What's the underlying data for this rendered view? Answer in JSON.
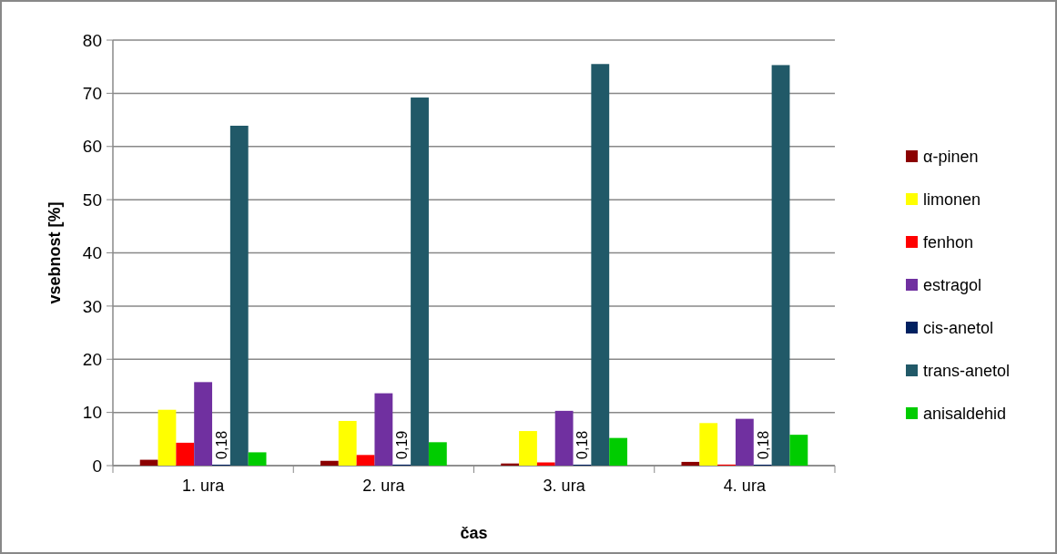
{
  "chart_data": {
    "type": "bar",
    "xlabel": "čas",
    "ylabel": "vsebnost [%]",
    "categories": [
      "1. ura",
      "2. ura",
      "3. ura",
      "4. ura"
    ],
    "series": [
      {
        "name": "α-pinen",
        "color": "#8b0000",
        "values": [
          1.1,
          0.9,
          0.4,
          0.7
        ]
      },
      {
        "name": "limonen",
        "color": "#ffff00",
        "values": [
          10.5,
          8.4,
          6.5,
          8.0
        ]
      },
      {
        "name": "fenhon",
        "color": "#ff0000",
        "values": [
          4.3,
          2.0,
          0.6,
          0.2
        ]
      },
      {
        "name": "estragol",
        "color": "#7030a0",
        "values": [
          15.7,
          13.6,
          10.3,
          8.8
        ]
      },
      {
        "name": "cis-anetol",
        "color": "#002060",
        "values": [
          0.18,
          0.19,
          0.18,
          0.18
        ],
        "value_labels": [
          "0,18",
          "0,19",
          "0,18",
          "0,18"
        ]
      },
      {
        "name": "trans-anetol",
        "color": "#215968",
        "values": [
          63.9,
          69.2,
          75.5,
          75.3
        ]
      },
      {
        "name": "anisaldehid",
        "color": "#00cc00",
        "values": [
          2.5,
          4.4,
          5.2,
          5.8
        ]
      }
    ],
    "ylim": [
      0,
      80
    ],
    "yticks": [
      0,
      10,
      20,
      30,
      40,
      50,
      60,
      70,
      80
    ],
    "grid": "y",
    "legend": "right"
  }
}
